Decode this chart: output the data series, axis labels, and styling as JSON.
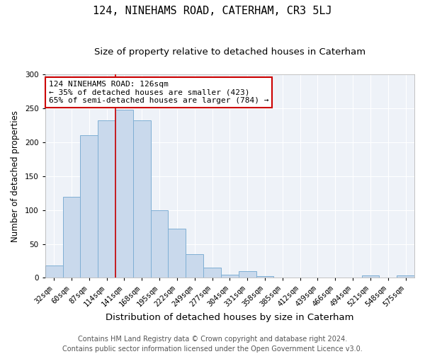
{
  "title": "124, NINEHAMS ROAD, CATERHAM, CR3 5LJ",
  "subtitle": "Size of property relative to detached houses in Caterham",
  "xlabel": "Distribution of detached houses by size in Caterham",
  "ylabel": "Number of detached properties",
  "bar_labels": [
    "32sqm",
    "60sqm",
    "87sqm",
    "114sqm",
    "141sqm",
    "168sqm",
    "195sqm",
    "222sqm",
    "249sqm",
    "277sqm",
    "304sqm",
    "331sqm",
    "358sqm",
    "385sqm",
    "412sqm",
    "439sqm",
    "466sqm",
    "494sqm",
    "521sqm",
    "548sqm",
    "575sqm"
  ],
  "bar_values": [
    18,
    120,
    210,
    232,
    248,
    232,
    100,
    73,
    35,
    15,
    5,
    10,
    3,
    0,
    0,
    0,
    0,
    0,
    4,
    0,
    4
  ],
  "bar_color": "#c9d9ec",
  "bar_edgecolor": "#7fafd4",
  "vline_color": "#cc0000",
  "vline_x": 3.5,
  "annotation_line1": "124 NINEHAMS ROAD: 126sqm",
  "annotation_line2": "← 35% of detached houses are smaller (423)",
  "annotation_line3": "65% of semi-detached houses are larger (784) →",
  "annotation_box_edgecolor": "#cc0000",
  "ylim": [
    0,
    300
  ],
  "yticks": [
    0,
    50,
    100,
    150,
    200,
    250,
    300
  ],
  "footer_line1": "Contains HM Land Registry data © Crown copyright and database right 2024.",
  "footer_line2": "Contains public sector information licensed under the Open Government Licence v3.0.",
  "bg_color": "#eef2f8",
  "title_fontsize": 11,
  "subtitle_fontsize": 9.5,
  "xlabel_fontsize": 9.5,
  "ylabel_fontsize": 8.5,
  "tick_fontsize": 7.5,
  "annot_fontsize": 8,
  "footer_fontsize": 7
}
